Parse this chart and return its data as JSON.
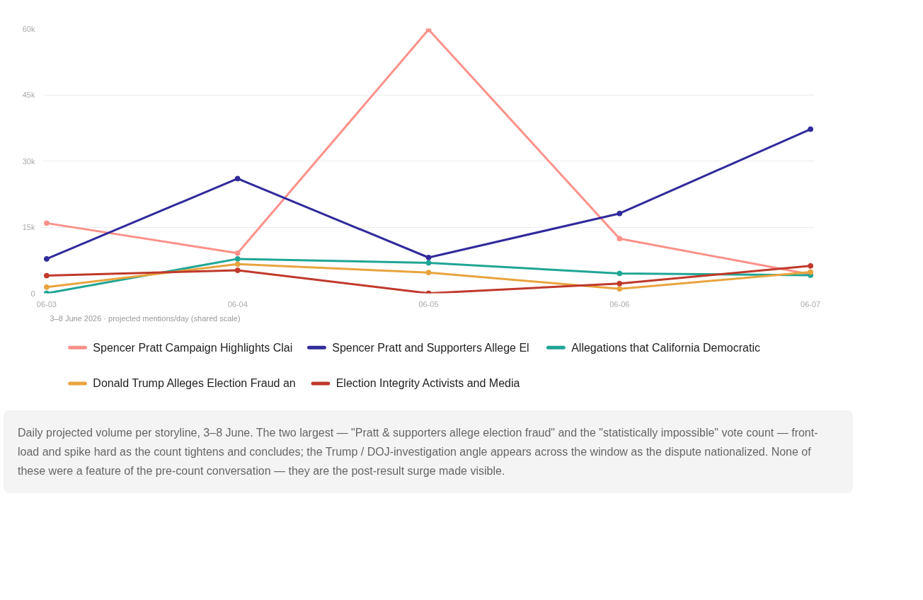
{
  "chart_data": {
    "type": "line",
    "categories": [
      "06-03",
      "06-04",
      "06-05",
      "06-06",
      "06-07"
    ],
    "series": [
      {
        "name": "Spencer Pratt Campaign Highlights Clai",
        "color": "#fc9189",
        "values": [
          15900,
          9100,
          59800,
          12400,
          4300
        ]
      },
      {
        "name": "Spencer Pratt and Supporters Allege El",
        "color": "#312a9b",
        "values": [
          7800,
          26000,
          8100,
          18100,
          37200
        ]
      },
      {
        "name": "Allegations that California Democratic",
        "color": "#1fa595",
        "values": [
          0,
          7800,
          6900,
          4500,
          4100
        ]
      },
      {
        "name": "Donald Trump Alleges Election Fraud an",
        "color": "#e8a43e",
        "values": [
          1400,
          6600,
          4700,
          1000,
          4800
        ]
      },
      {
        "name": "Election Integrity Activists and Media",
        "color": "#c0392b",
        "values": [
          4000,
          5200,
          0,
          2200,
          6200
        ]
      }
    ],
    "ylim": [
      0,
      60000
    ],
    "yticks": [
      {
        "value": 0,
        "label": "0"
      },
      {
        "value": 15000,
        "label": "15k"
      },
      {
        "value": 30000,
        "label": "30k"
      },
      {
        "value": 45000,
        "label": "45k"
      },
      {
        "value": 60000,
        "label": "60k"
      }
    ],
    "grid": "y",
    "legend": "bottom",
    "marker": "circle",
    "line_style": "solid",
    "annotations": [
      "3–8 June 2026 · projected mentions/day (shared scale)",
      "Daily projected volume per storyline, 3–8 June. The two largest — \"Pratt & supporters allege election fraud\" and the \"statistically impossible\" vote count — front-load and spike hard as the count tightens and concludes; the Trump / DOJ-investigation angle appears across the window as the dispute nationalized. None of these were a feature of the pre-count conversation — they are the post-result surge made visible."
    ]
  }
}
